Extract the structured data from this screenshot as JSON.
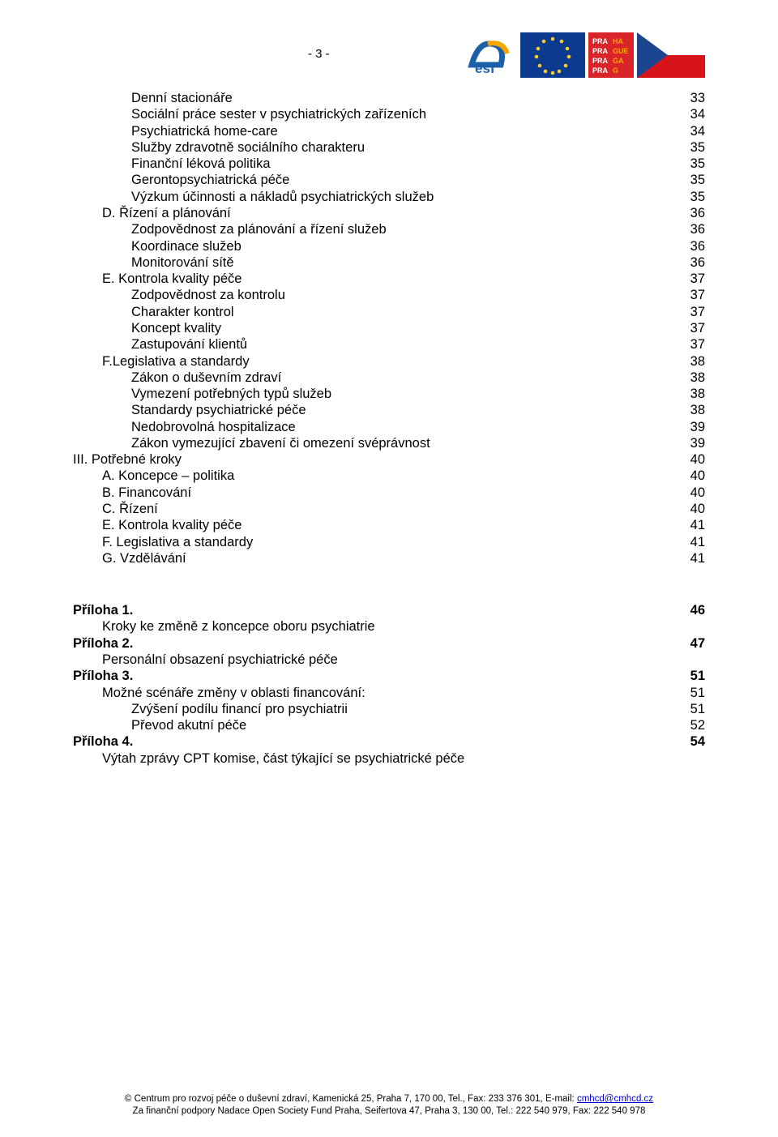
{
  "page_number": "- 3 -",
  "logos": {
    "esf": {
      "bg": "#ffffff",
      "text_color": "#1b5fa8",
      "accent": "#f7a600"
    },
    "eu": {
      "bg": "#0b3a8f",
      "star": "#f8cc30"
    },
    "praha": {
      "bg": "#d9252a",
      "text": "PRA HA\nPRA GUE\nPRA GA\nPRA G"
    },
    "cz": {
      "blue": "#1b458f",
      "red": "#d7141a",
      "white": "#ffffff"
    }
  },
  "toc": [
    {
      "label": "Denní stacionáře",
      "page": "33",
      "indent": 2
    },
    {
      "label": "Sociální práce sester v psychiatrických zařízeních",
      "page": "34",
      "indent": 2
    },
    {
      "label": "Psychiatrická home-care",
      "page": "34",
      "indent": 2
    },
    {
      "label": "Služby  zdravotně sociálního charakteru",
      "page": "35",
      "indent": 2
    },
    {
      "label": "Finanční léková politika",
      "page": "35",
      "indent": 2
    },
    {
      "label": "Gerontopsychiatrická péče",
      "page": "35",
      "indent": 2
    },
    {
      "label": "Výzkum účinnosti a nákladů psychiatrických služeb",
      "page": "35",
      "indent": 2
    },
    {
      "label": "D. Řízení a plánování",
      "page": "36",
      "indent": 1
    },
    {
      "label": "Zodpovědnost za plánování a řízení služeb",
      "page": "36",
      "indent": 2
    },
    {
      "label": "Koordinace služeb",
      "page": "36",
      "indent": 2
    },
    {
      "label": "Monitorování sítě",
      "page": "36",
      "indent": 2
    },
    {
      "label": "E. Kontrola kvality péče",
      "page": "37",
      "indent": 1
    },
    {
      "label": "Zodpovědnost za kontrolu",
      "page": "37",
      "indent": 2
    },
    {
      "label": "Charakter kontrol",
      "page": "37",
      "indent": 2
    },
    {
      "label": "Koncept kvality",
      "page": "37",
      "indent": 2
    },
    {
      "label": "Zastupování klientů",
      "page": "37",
      "indent": 2
    },
    {
      "label": "F.Legislativa a standardy",
      "page": "38",
      "indent": 1
    },
    {
      "label": "Zákon o duševním zdraví",
      "page": "38",
      "indent": 2
    },
    {
      "label": "Vymezení  potřebných typů služeb",
      "page": "38",
      "indent": 2
    },
    {
      "label": "Standardy psychiatrické péče",
      "page": "38",
      "indent": 2
    },
    {
      "label": "Nedobrovolná hospitalizace",
      "page": "39",
      "indent": 2
    },
    {
      "label": "Zákon vymezující zbavení či omezení svéprávnost",
      "page": "39",
      "indent": 2
    },
    {
      "label": "III. Potřebné kroky",
      "page": "40",
      "indent": 0
    },
    {
      "label": "A. Koncepce – politika",
      "page": "40",
      "indent": 1
    },
    {
      "label": "B. Financování",
      "page": "40",
      "indent": 1
    },
    {
      "label": "C. Řízení",
      "page": "40",
      "indent": 1
    },
    {
      "label": "E. Kontrola kvality péče",
      "page": "41",
      "indent": 1
    },
    {
      "label": "F. Legislativa a standardy",
      "page": "41",
      "indent": 1
    },
    {
      "label": "G. Vzdělávání",
      "page": "41",
      "indent": 1
    }
  ],
  "appendix": [
    {
      "label": "Příloha 1.",
      "page": "46",
      "indent": 0,
      "bold": true
    },
    {
      "label": "Kroky ke změně  z koncepce oboru psychiatrie",
      "page": "",
      "indent": 1
    },
    {
      "label": "Příloha 2.",
      "page": "47",
      "indent": 0,
      "bold": true
    },
    {
      "label": "Personální obsazení psychiatrické péče",
      "page": "",
      "indent": 1
    },
    {
      "label": "Příloha 3.",
      "page": "51",
      "indent": 0,
      "bold": true
    },
    {
      "label": "Možné scénáře změny v oblasti financování:",
      "page": "51",
      "indent": 1
    },
    {
      "label": "Zvýšení podílu financí pro psychiatrii",
      "page": "51",
      "indent": 2
    },
    {
      "label": "Převod akutní péče",
      "page": "52",
      "indent": 2
    },
    {
      "label": "Příloha 4.",
      "page": "54",
      "indent": 0,
      "bold": true
    },
    {
      "label": "Výtah zprávy CPT komise, část týkající se psychiatrické péče",
      "page": "",
      "indent": 1
    }
  ],
  "footer": {
    "line1_pre": "© Centrum pro rozvoj péče o duševní zdraví, Kamenická 25, Praha 7, 170 00, Tel., Fax: 233 376 301, E-mail: ",
    "line1_link": "cmhcd@cmhcd.cz",
    "line2": "Za finanční podpory Nadace Open Society Fund Praha, Seifertova 47, Praha 3, 130 00, Tel.: 222 540 979, Fax:  222 540 978"
  }
}
